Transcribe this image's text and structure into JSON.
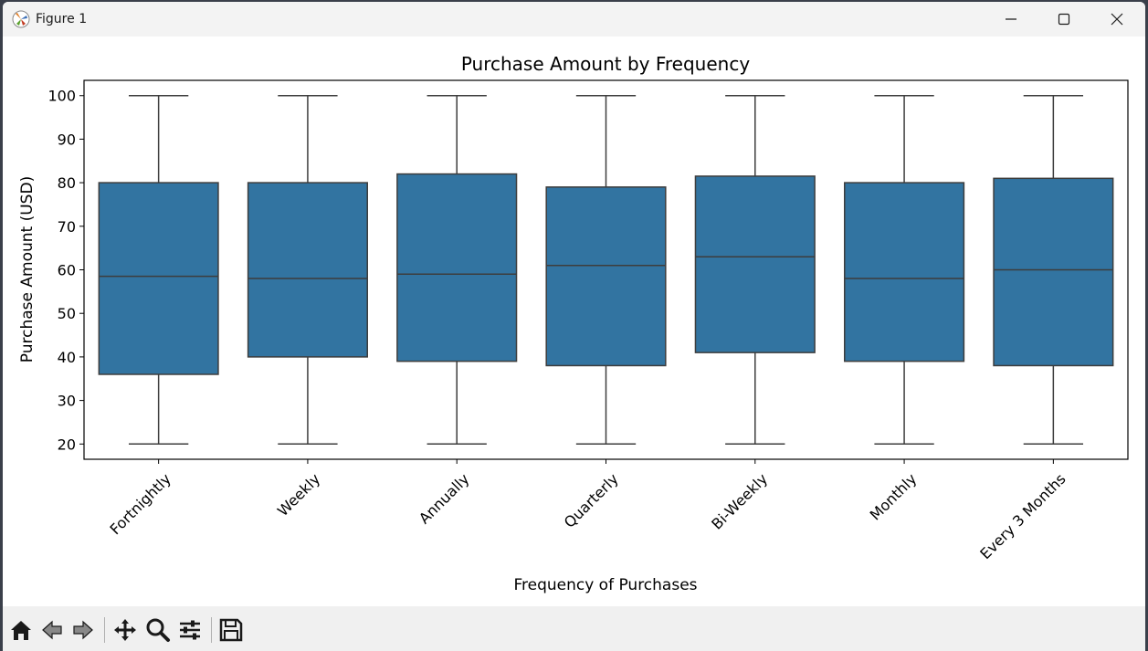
{
  "window": {
    "title": "Figure 1"
  },
  "toolbar": {
    "buttons": [
      {
        "name": "home-icon"
      },
      {
        "name": "back-icon"
      },
      {
        "name": "forward-icon"
      },
      {
        "name": "pan-icon"
      },
      {
        "name": "zoom-icon"
      },
      {
        "name": "configure-subplots-icon"
      },
      {
        "name": "save-icon"
      }
    ]
  },
  "colors": {
    "box_fill": "#3274a1",
    "box_edge": "#3d3d3d"
  },
  "chart_data": {
    "type": "box",
    "title": "Purchase Amount by Frequency",
    "xlabel": "Frequency of Purchases",
    "ylabel": "Purchase Amount (USD)",
    "ylim": [
      16.5,
      103.5
    ],
    "yticks": [
      20,
      30,
      40,
      50,
      60,
      70,
      80,
      90,
      100
    ],
    "grid": false,
    "categories": [
      "Fortnightly",
      "Weekly",
      "Annually",
      "Quarterly",
      "Bi-Weekly",
      "Monthly",
      "Every 3 Months"
    ],
    "boxes": [
      {
        "category": "Fortnightly",
        "min": 20,
        "q1": 36,
        "median": 58.5,
        "q3": 80,
        "max": 100
      },
      {
        "category": "Weekly",
        "min": 20,
        "q1": 40,
        "median": 58,
        "q3": 80,
        "max": 100
      },
      {
        "category": "Annually",
        "min": 20,
        "q1": 39,
        "median": 59,
        "q3": 82,
        "max": 100
      },
      {
        "category": "Quarterly",
        "min": 20,
        "q1": 38,
        "median": 61,
        "q3": 79,
        "max": 100
      },
      {
        "category": "Bi-Weekly",
        "min": 20,
        "q1": 41,
        "median": 63,
        "q3": 81.5,
        "max": 100
      },
      {
        "category": "Monthly",
        "min": 20,
        "q1": 39,
        "median": 58,
        "q3": 80,
        "max": 100
      },
      {
        "category": "Every 3 Months",
        "min": 20,
        "q1": 38,
        "median": 60,
        "q3": 81,
        "max": 100
      }
    ]
  }
}
